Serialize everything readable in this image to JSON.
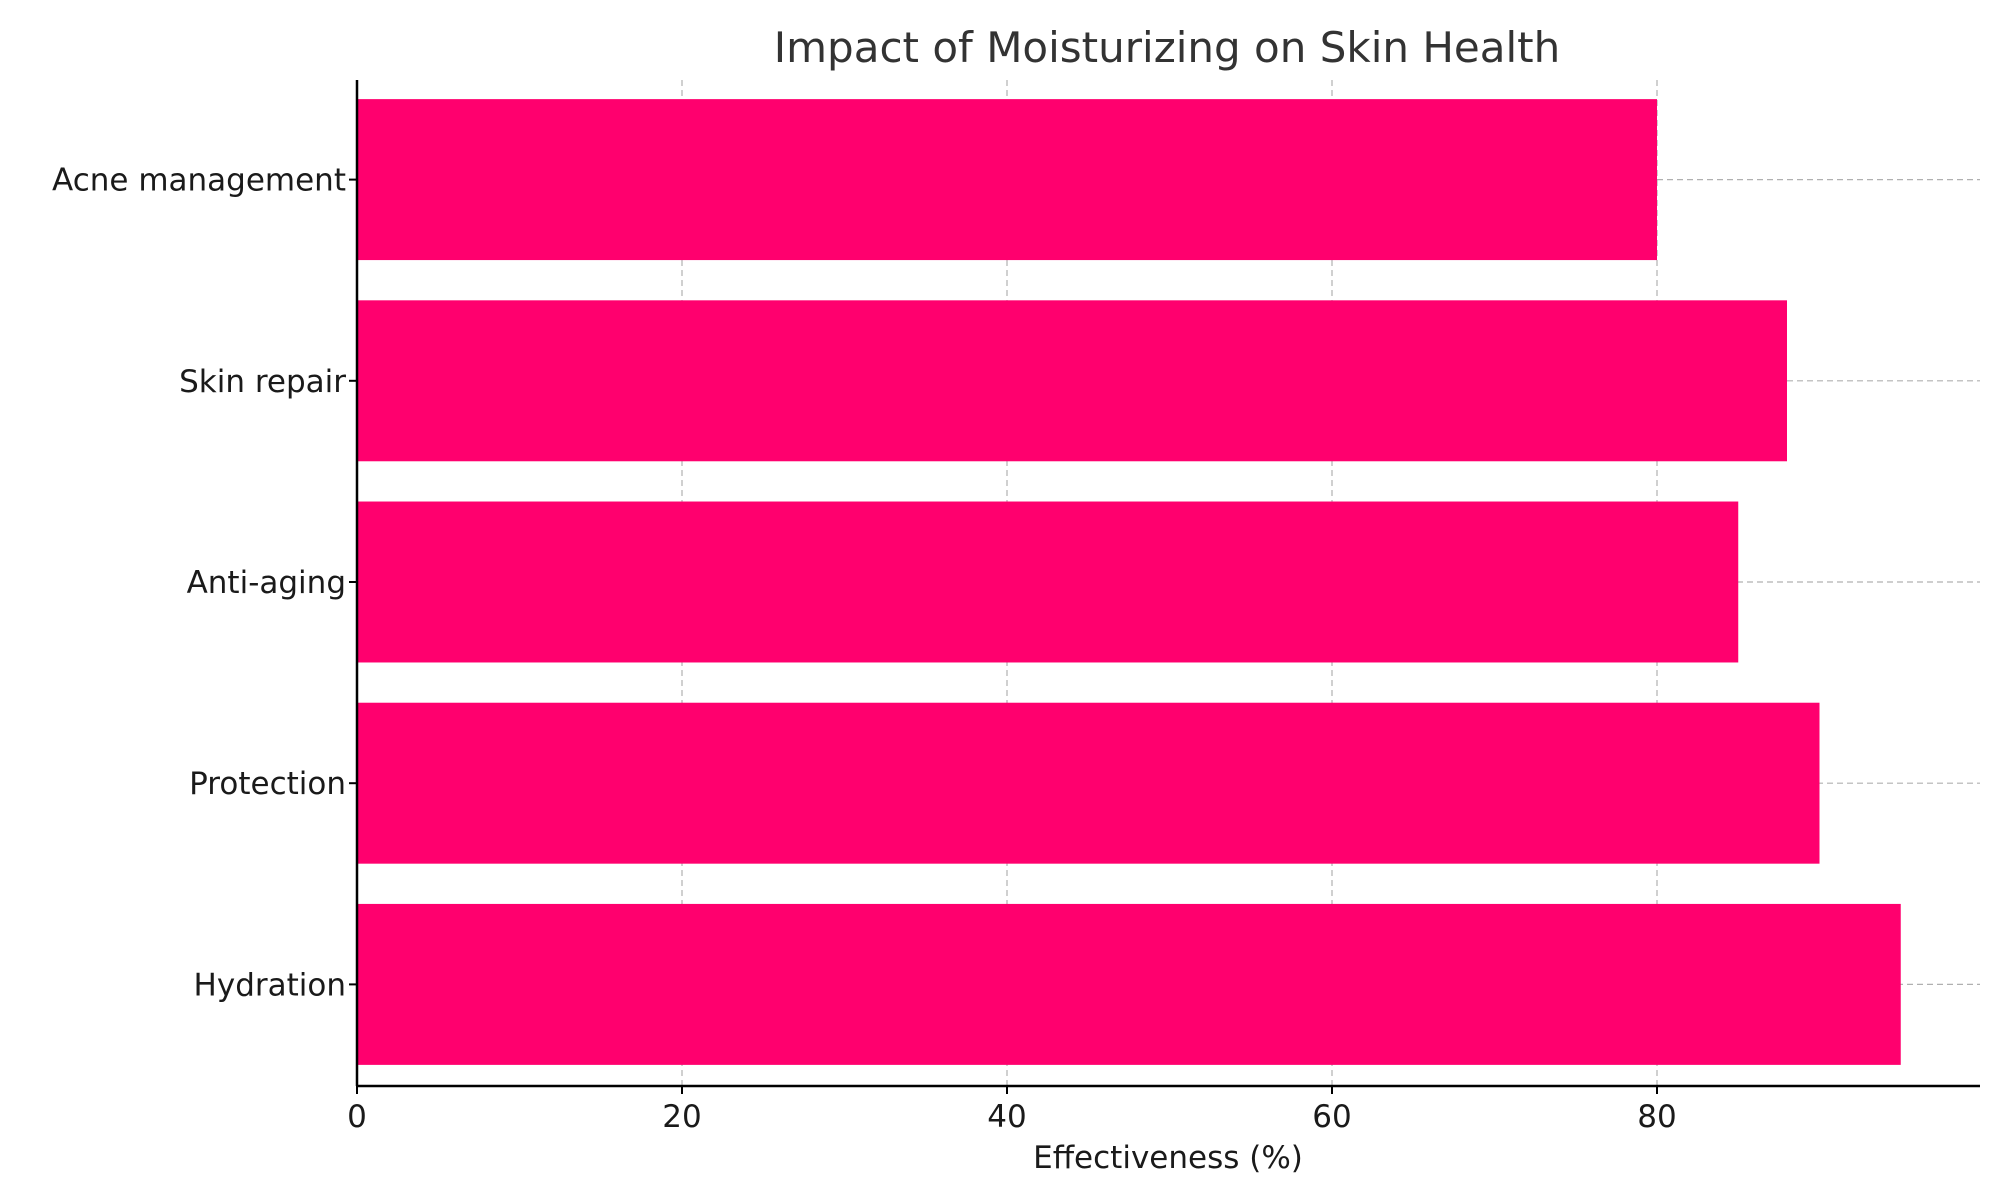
{
  "chart_data": {
    "type": "bar",
    "orientation": "horizontal",
    "title": "Impact of Moisturizing on Skin Health",
    "xlabel": "Effectiveness (%)",
    "ylabel": "",
    "categories": [
      "Hydration",
      "Protection",
      "Anti-aging",
      "Skin repair",
      "Acne management"
    ],
    "values": [
      95,
      90,
      85,
      88,
      80
    ],
    "xlim": [
      0,
      100
    ],
    "xticks": [
      0,
      20,
      40,
      60,
      80
    ],
    "xtick_labels": [
      "0",
      "20",
      "40",
      "60",
      "80"
    ],
    "bar_color": "#ff006e",
    "grid": true
  }
}
